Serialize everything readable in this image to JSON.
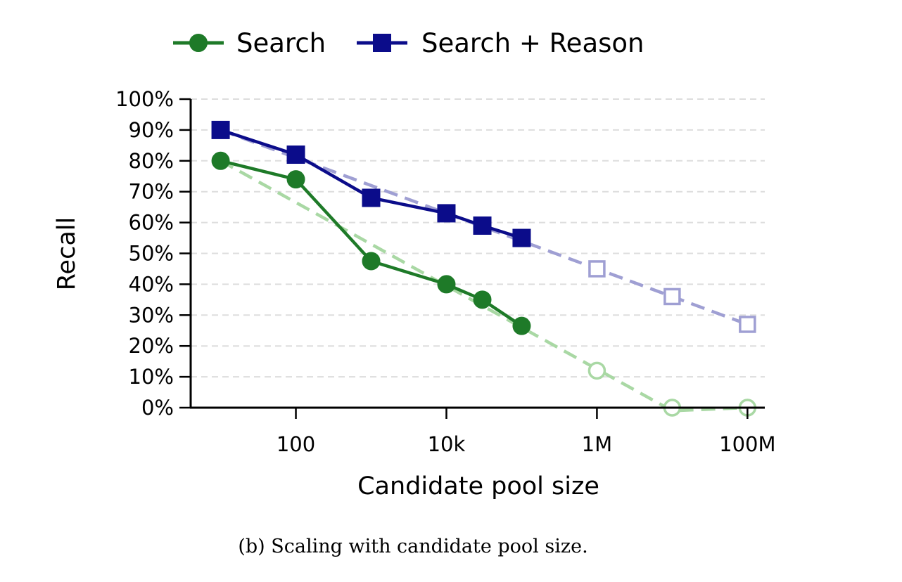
{
  "chart_data": {
    "type": "line",
    "title": "",
    "xlabel": "Candidate pool size",
    "ylabel": "Recall",
    "x_scale": "log",
    "xlim": [
      4,
      170000000
    ],
    "ylim": [
      0,
      100
    ],
    "x_ticks": [
      {
        "value": 100,
        "label": "100"
      },
      {
        "value": 10000,
        "label": "10k"
      },
      {
        "value": 1000000,
        "label": "1M"
      },
      {
        "value": 100000000,
        "label": "100M"
      }
    ],
    "y_ticks": [
      {
        "value": 0,
        "label": "0%"
      },
      {
        "value": 10,
        "label": "10%"
      },
      {
        "value": 20,
        "label": "20%"
      },
      {
        "value": 30,
        "label": "30%"
      },
      {
        "value": 40,
        "label": "40%"
      },
      {
        "value": 50,
        "label": "50%"
      },
      {
        "value": 60,
        "label": "60%"
      },
      {
        "value": 70,
        "label": "70%"
      },
      {
        "value": 80,
        "label": "80%"
      },
      {
        "value": 90,
        "label": "90%"
      },
      {
        "value": 100,
        "label": "100%"
      }
    ],
    "grid": true,
    "legend_position": "top",
    "series": [
      {
        "name": "Search",
        "color": "#1e7a28",
        "marker": "circle",
        "x": [
          10,
          100,
          1000,
          10000,
          30000,
          100000
        ],
        "y": [
          80,
          74,
          47.5,
          40,
          35,
          26.5
        ],
        "extrapolated": {
          "color": "#a9d8a4",
          "x": [
            1000000,
            10000000,
            100000000
          ],
          "y": [
            12,
            0,
            0
          ],
          "trend_x": [
            10,
            10000000,
            100000000
          ],
          "trend_y": [
            80,
            -1,
            0
          ]
        }
      },
      {
        "name": "Search + Reason",
        "color": "#0b0c8a",
        "marker": "square",
        "x": [
          10,
          100,
          1000,
          10000,
          30000,
          100000
        ],
        "y": [
          90,
          82,
          68,
          63,
          59,
          55
        ],
        "extrapolated": {
          "color": "#9f9fd3",
          "x": [
            1000000,
            10000000,
            100000000
          ],
          "y": [
            45,
            36,
            27
          ],
          "trend_x": [
            10,
            100000000
          ],
          "trend_y": [
            90,
            27
          ]
        }
      }
    ]
  },
  "caption": "(b) Scaling with candidate pool size."
}
